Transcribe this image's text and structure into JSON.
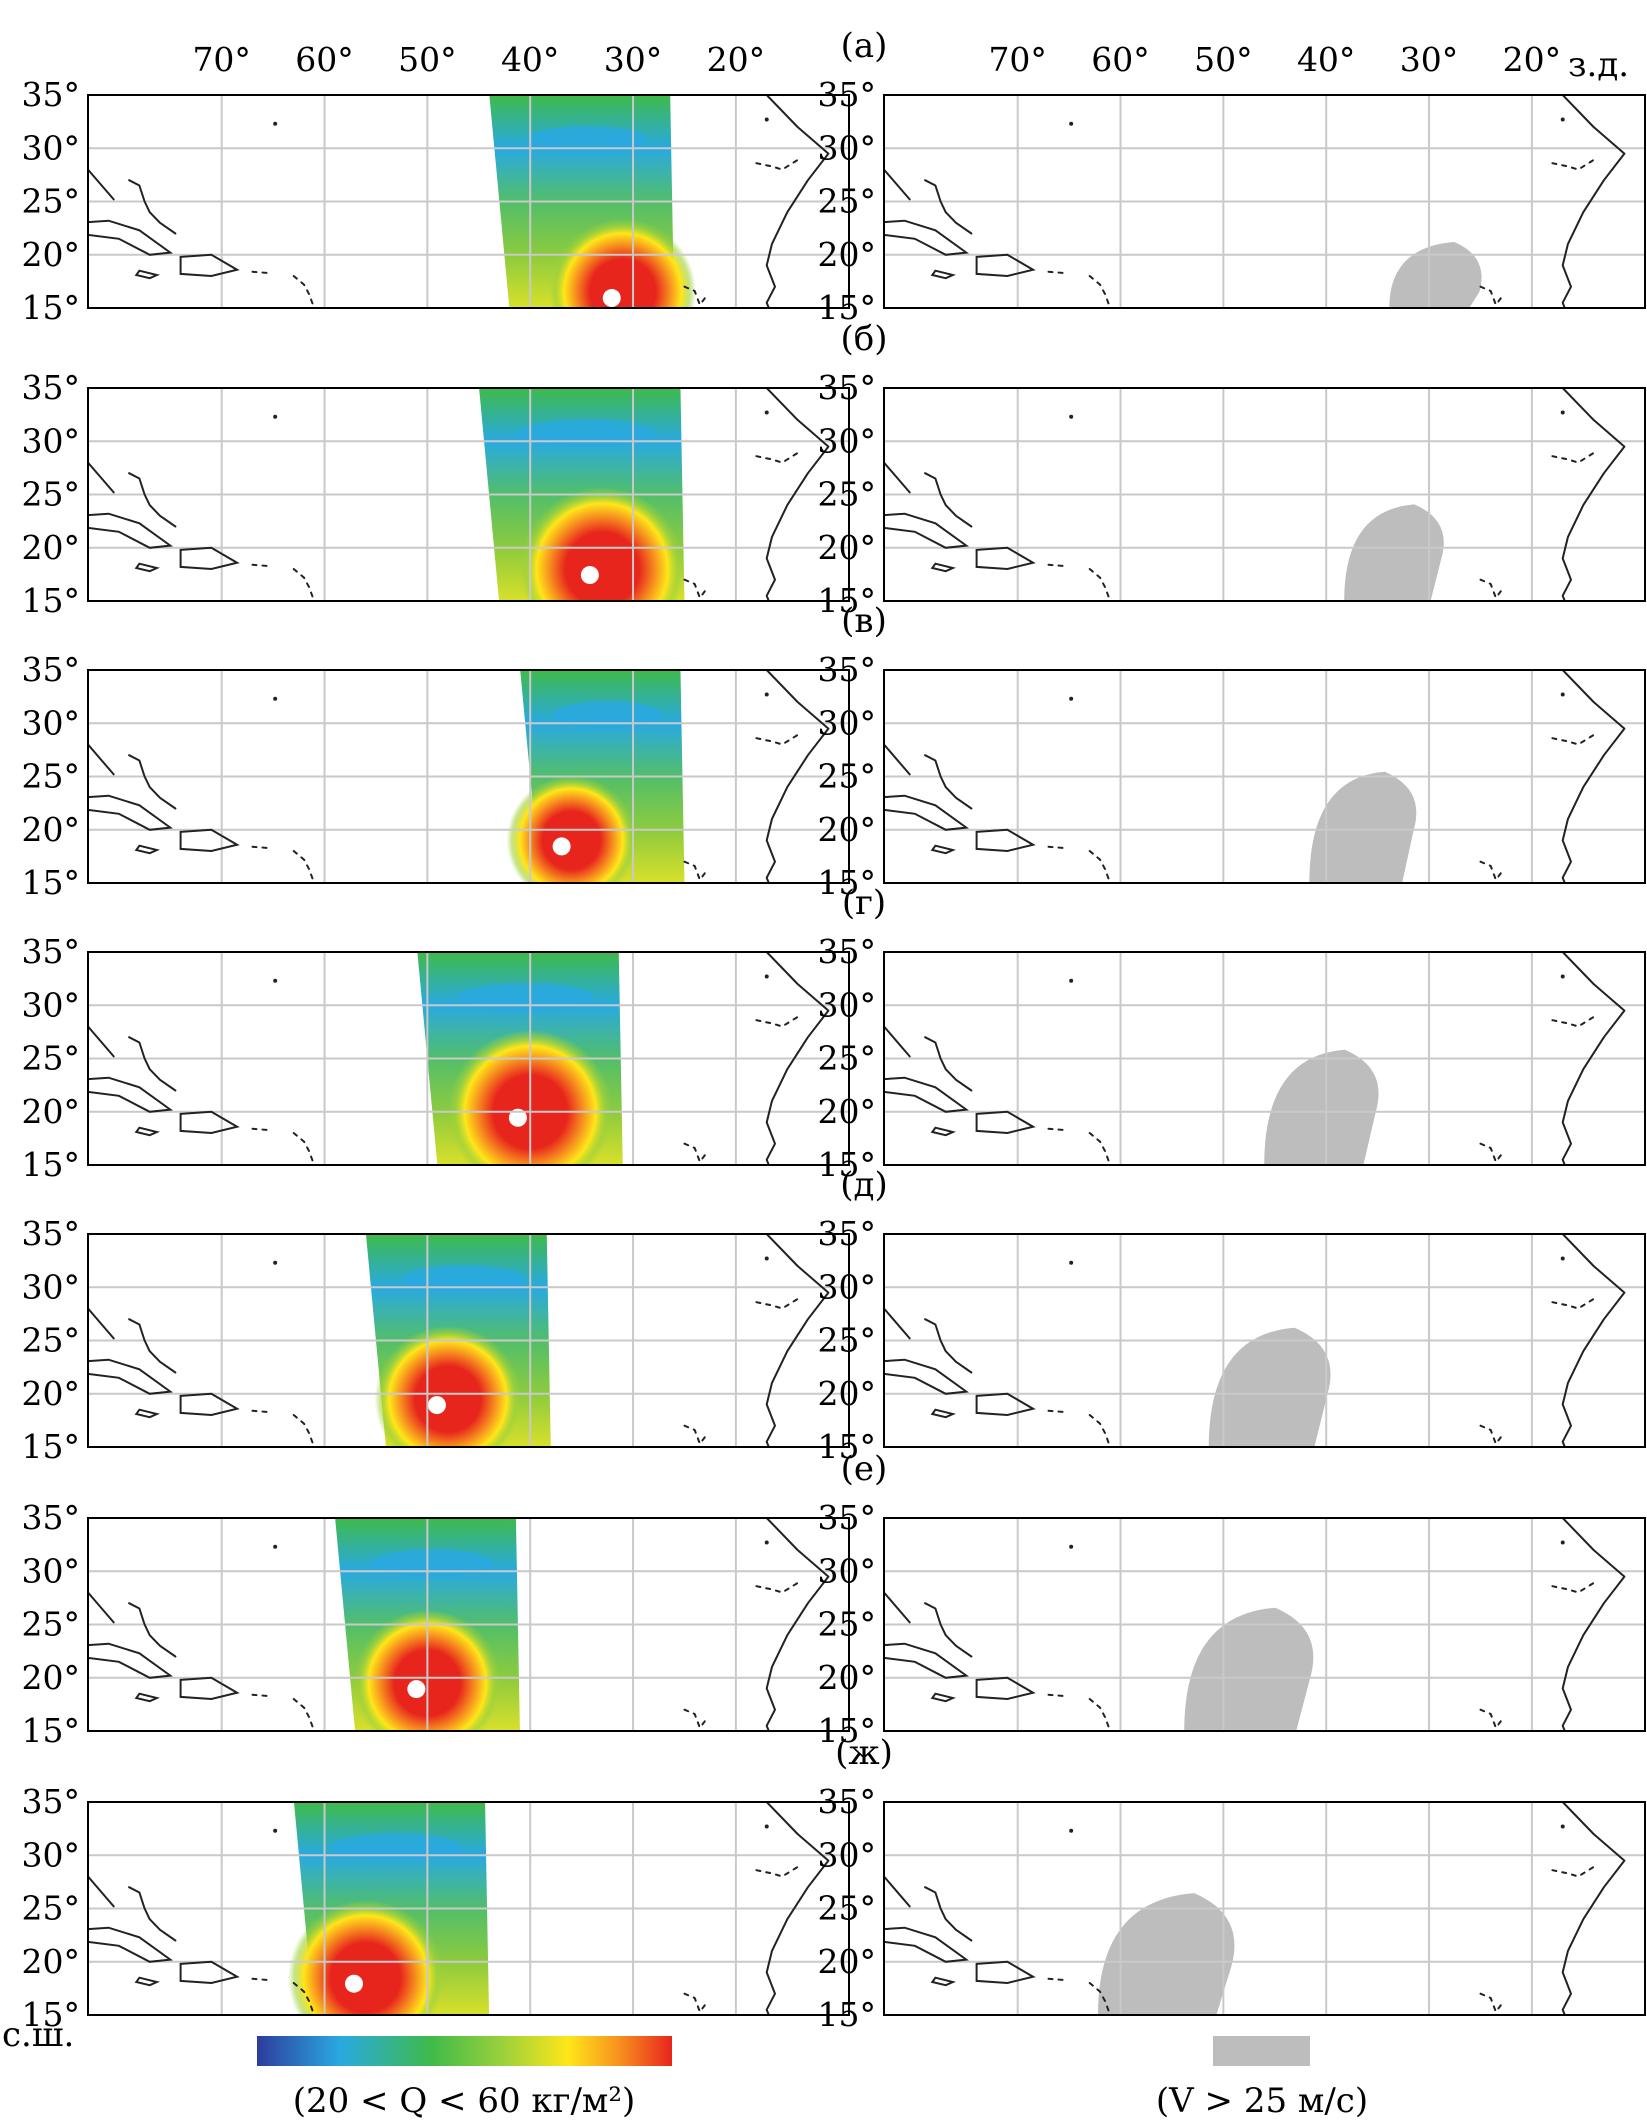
{
  "figure": {
    "panels": [
      {
        "label": "(а)",
        "swath_lon": [
          -43,
          -26
        ],
        "storm_lon": -31,
        "storm_lat": 16.5,
        "wind_lon": -29,
        "wind_lat": 16.5
      },
      {
        "label": "(б)",
        "swath_lon": [
          -44,
          -25
        ],
        "storm_lon": -33,
        "storm_lat": 18,
        "wind_lon": -33,
        "wind_lat": 19
      },
      {
        "label": "(в)",
        "swath_lon": [
          -40,
          -25
        ],
        "storm_lon": -36,
        "storm_lat": 19,
        "wind_lon": -36,
        "wind_lat": 20
      },
      {
        "label": "(г)",
        "swath_lon": [
          -50,
          -31
        ],
        "storm_lon": -40,
        "storm_lat": 20,
        "wind_lon": -40,
        "wind_lat": 20
      },
      {
        "label": "(д)",
        "swath_lon": [
          -55,
          -38
        ],
        "storm_lon": -48,
        "storm_lat": 19.5,
        "wind_lon": -45,
        "wind_lat": 20
      },
      {
        "label": "(е)",
        "swath_lon": [
          -58,
          -41
        ],
        "storm_lon": -50,
        "storm_lat": 19.5,
        "wind_lon": -47,
        "wind_lat": 20
      },
      {
        "label": "(ж)",
        "swath_lon": [
          -62,
          -44
        ],
        "storm_lon": -56,
        "storm_lat": 18.5,
        "wind_lon": -55,
        "wind_lat": 19.5
      }
    ],
    "lon_ticks": [
      "70°",
      "60°",
      "50°",
      "40°",
      "30°",
      "20°"
    ],
    "lat_ticks": [
      "35°",
      "30°",
      "25°",
      "20°",
      "15°"
    ],
    "lon_unit": "з.д.",
    "lat_unit": "с.ш.",
    "left_legend": {
      "text": "(20 < Q < 60 кг/м²)",
      "gradient": [
        "#2d3c9c",
        "#29a9e1",
        "#3fba4a",
        "#9fd23a",
        "#ffe619",
        "#f7931e",
        "#e8251d"
      ]
    },
    "right_legend": {
      "text": "(V > 25 м/с)",
      "color": "#bdbdbd"
    }
  }
}
